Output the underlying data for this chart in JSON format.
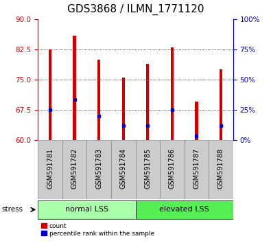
{
  "title": "GDS3868 / ILMN_1771120",
  "samples": [
    "GSM591781",
    "GSM591782",
    "GSM591783",
    "GSM591784",
    "GSM591785",
    "GSM591786",
    "GSM591787",
    "GSM591788"
  ],
  "bar_tops": [
    82.5,
    86.0,
    80.0,
    75.5,
    79.0,
    83.0,
    69.5,
    77.5
  ],
  "blue_positions": [
    67.5,
    70.0,
    66.0,
    63.5,
    63.5,
    67.5,
    61.0,
    63.5
  ],
  "bar_bottom": 60,
  "ylim": [
    60,
    90
  ],
  "y_ticks_left": [
    60,
    67.5,
    75,
    82.5,
    90
  ],
  "y_ticks_right": [
    0,
    25,
    50,
    75,
    100
  ],
  "bar_color": "#cc0000",
  "blue_color": "#0000cc",
  "bar_width": 0.12,
  "groups": [
    {
      "label": "normal LSS",
      "start": 0,
      "end": 4,
      "color": "#aaffaa"
    },
    {
      "label": "elevated LSS",
      "start": 4,
      "end": 8,
      "color": "#55ee55"
    }
  ],
  "stress_label": "stress",
  "title_fontsize": 11,
  "tick_label_fontsize": 7.5,
  "axis_color_left": "#cc0000",
  "axis_color_right": "#0000cc",
  "xtick_bg_color": "#cccccc",
  "xtick_border_color": "#888888"
}
